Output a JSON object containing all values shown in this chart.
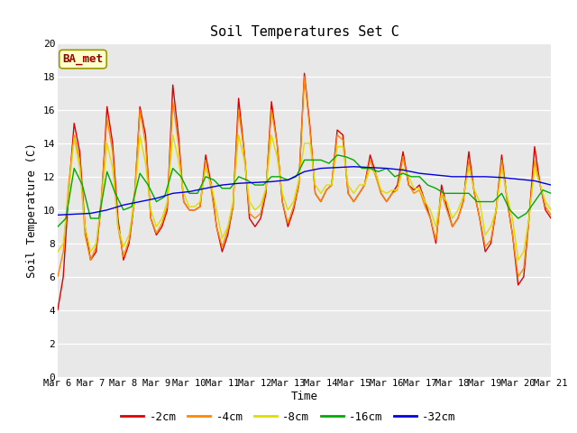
{
  "title": "Soil Temperatures Set C",
  "xlabel": "Time",
  "ylabel": "Soil Temperature (C)",
  "ylim": [
    0,
    20
  ],
  "yticks": [
    0,
    2,
    4,
    6,
    8,
    10,
    12,
    14,
    16,
    18,
    20
  ],
  "bg_color": "#e8e8e8",
  "fig_color": "#ffffff",
  "legend_label": "BA_met",
  "series": {
    "neg2cm": {
      "color": "#dd0000",
      "label": "-2cm",
      "x": [
        0.0,
        0.17,
        0.33,
        0.5,
        0.67,
        0.83,
        1.0,
        1.17,
        1.33,
        1.5,
        1.67,
        1.83,
        2.0,
        2.17,
        2.33,
        2.5,
        2.67,
        2.83,
        3.0,
        3.17,
        3.33,
        3.5,
        3.67,
        3.83,
        4.0,
        4.17,
        4.33,
        4.5,
        4.67,
        4.83,
        5.0,
        5.17,
        5.33,
        5.5,
        5.67,
        5.83,
        6.0,
        6.17,
        6.33,
        6.5,
        6.67,
        6.83,
        7.0,
        7.17,
        7.33,
        7.5,
        7.67,
        7.83,
        8.0,
        8.17,
        8.33,
        8.5,
        8.67,
        8.83,
        9.0,
        9.17,
        9.33,
        9.5,
        9.67,
        9.83,
        10.0,
        10.17,
        10.33,
        10.5,
        10.67,
        10.83,
        11.0,
        11.17,
        11.33,
        11.5,
        11.67,
        11.83,
        12.0,
        12.17,
        12.33,
        12.5,
        12.67,
        12.83,
        13.0,
        13.17,
        13.33,
        13.5,
        13.67,
        13.83,
        14.0,
        14.17,
        14.33,
        14.5,
        14.67,
        14.83,
        15.0
      ],
      "y": [
        4.0,
        6.0,
        11.0,
        15.2,
        13.5,
        9.0,
        7.0,
        7.5,
        10.5,
        16.2,
        14.0,
        9.5,
        7.0,
        8.0,
        10.5,
        16.2,
        14.5,
        9.5,
        8.5,
        9.0,
        10.0,
        17.5,
        14.5,
        10.5,
        10.0,
        10.0,
        10.2,
        13.3,
        11.5,
        9.0,
        7.5,
        8.5,
        10.2,
        16.7,
        13.5,
        9.5,
        9.0,
        9.5,
        11.0,
        16.5,
        14.0,
        10.5,
        9.0,
        10.0,
        11.5,
        18.2,
        15.0,
        11.0,
        10.5,
        11.2,
        11.5,
        14.8,
        14.5,
        11.0,
        10.5,
        11.0,
        11.5,
        13.3,
        12.2,
        11.0,
        10.5,
        11.0,
        11.5,
        13.5,
        11.5,
        11.2,
        11.5,
        10.5,
        9.5,
        8.0,
        11.5,
        10.2,
        9.0,
        9.5,
        10.5,
        13.5,
        11.0,
        9.5,
        7.5,
        8.0,
        10.0,
        13.3,
        10.5,
        8.5,
        5.5,
        6.0,
        9.5,
        13.8,
        11.5,
        10.0,
        9.5
      ]
    },
    "neg4cm": {
      "color": "#ff8800",
      "label": "-4cm",
      "x": [
        0.0,
        0.17,
        0.33,
        0.5,
        0.67,
        0.83,
        1.0,
        1.17,
        1.33,
        1.5,
        1.67,
        1.83,
        2.0,
        2.17,
        2.33,
        2.5,
        2.67,
        2.83,
        3.0,
        3.17,
        3.33,
        3.5,
        3.67,
        3.83,
        4.0,
        4.17,
        4.33,
        4.5,
        4.67,
        4.83,
        5.0,
        5.17,
        5.33,
        5.5,
        5.67,
        5.83,
        6.0,
        6.17,
        6.33,
        6.5,
        6.67,
        6.83,
        7.0,
        7.17,
        7.33,
        7.5,
        7.67,
        7.83,
        8.0,
        8.17,
        8.33,
        8.5,
        8.67,
        8.83,
        9.0,
        9.17,
        9.33,
        9.5,
        9.67,
        9.83,
        10.0,
        10.17,
        10.33,
        10.5,
        10.67,
        10.83,
        11.0,
        11.17,
        11.33,
        11.5,
        11.67,
        11.83,
        12.0,
        12.17,
        12.33,
        12.5,
        12.67,
        12.83,
        13.0,
        13.17,
        13.33,
        13.5,
        13.67,
        13.83,
        14.0,
        14.17,
        14.33,
        14.5,
        14.67,
        14.83,
        15.0
      ],
      "y": [
        6.0,
        7.5,
        11.5,
        14.5,
        13.0,
        8.5,
        7.0,
        7.8,
        10.8,
        15.5,
        13.5,
        9.0,
        7.2,
        8.2,
        10.8,
        16.0,
        14.0,
        9.5,
        8.6,
        9.2,
        10.2,
        16.5,
        14.0,
        10.5,
        10.0,
        10.0,
        10.2,
        13.0,
        11.2,
        9.0,
        7.8,
        8.8,
        10.2,
        16.0,
        13.5,
        9.8,
        9.5,
        9.8,
        11.2,
        16.0,
        14.0,
        10.5,
        9.2,
        10.2,
        11.5,
        18.0,
        14.8,
        11.0,
        10.5,
        11.2,
        11.5,
        14.5,
        14.2,
        11.0,
        10.5,
        11.0,
        11.5,
        13.0,
        12.0,
        11.0,
        10.5,
        11.0,
        11.2,
        13.2,
        11.5,
        11.0,
        11.2,
        10.2,
        9.5,
        8.2,
        11.0,
        10.0,
        9.0,
        9.5,
        10.5,
        13.0,
        11.0,
        9.5,
        7.8,
        8.2,
        10.0,
        13.0,
        10.5,
        8.5,
        6.0,
        6.5,
        9.5,
        13.0,
        11.5,
        10.2,
        9.7
      ]
    },
    "neg8cm": {
      "color": "#dddd00",
      "label": "-8cm",
      "x": [
        0.0,
        0.17,
        0.33,
        0.5,
        0.67,
        0.83,
        1.0,
        1.17,
        1.33,
        1.5,
        1.67,
        1.83,
        2.0,
        2.17,
        2.33,
        2.5,
        2.67,
        2.83,
        3.0,
        3.17,
        3.33,
        3.5,
        3.67,
        3.83,
        4.0,
        4.17,
        4.33,
        4.5,
        4.67,
        4.83,
        5.0,
        5.17,
        5.33,
        5.5,
        5.67,
        5.83,
        6.0,
        6.17,
        6.33,
        6.5,
        6.67,
        6.83,
        7.0,
        7.17,
        7.33,
        7.5,
        7.67,
        7.83,
        8.0,
        8.17,
        8.33,
        8.5,
        8.67,
        8.83,
        9.0,
        9.17,
        9.33,
        9.5,
        9.67,
        9.83,
        10.0,
        10.17,
        10.33,
        10.5,
        10.67,
        10.83,
        11.0,
        11.17,
        11.33,
        11.5,
        11.67,
        11.83,
        12.0,
        12.17,
        12.33,
        12.5,
        12.67,
        12.83,
        13.0,
        13.17,
        13.33,
        13.5,
        13.67,
        13.83,
        14.0,
        14.17,
        14.33,
        14.5,
        14.67,
        14.83,
        15.0
      ],
      "y": [
        7.5,
        8.0,
        11.0,
        14.3,
        12.5,
        9.0,
        7.5,
        8.0,
        10.5,
        14.0,
        12.5,
        9.0,
        7.8,
        8.5,
        10.5,
        14.5,
        12.8,
        10.0,
        9.0,
        9.5,
        10.5,
        14.5,
        13.0,
        11.0,
        10.2,
        10.2,
        10.5,
        12.5,
        11.5,
        10.0,
        8.3,
        9.0,
        10.5,
        14.5,
        13.0,
        10.5,
        10.0,
        10.3,
        11.3,
        14.5,
        13.2,
        11.0,
        10.0,
        10.5,
        11.8,
        14.0,
        14.0,
        11.5,
        11.0,
        11.5,
        11.5,
        13.8,
        13.8,
        11.5,
        11.0,
        11.5,
        11.5,
        12.5,
        12.2,
        11.2,
        11.0,
        11.2,
        11.2,
        12.5,
        12.0,
        11.3,
        11.3,
        10.5,
        10.0,
        9.0,
        11.0,
        10.5,
        9.5,
        10.0,
        10.8,
        12.5,
        11.2,
        10.5,
        8.5,
        9.0,
        10.0,
        12.5,
        10.8,
        9.5,
        7.0,
        7.5,
        9.5,
        12.5,
        11.5,
        10.5,
        10.0
      ]
    },
    "neg16cm": {
      "color": "#00aa00",
      "label": "-16cm",
      "x": [
        0.0,
        0.25,
        0.5,
        0.75,
        1.0,
        1.25,
        1.5,
        1.75,
        2.0,
        2.25,
        2.5,
        2.75,
        3.0,
        3.25,
        3.5,
        3.75,
        4.0,
        4.25,
        4.5,
        4.75,
        5.0,
        5.25,
        5.5,
        5.75,
        6.0,
        6.25,
        6.5,
        6.75,
        7.0,
        7.25,
        7.5,
        7.75,
        8.0,
        8.25,
        8.5,
        8.75,
        9.0,
        9.25,
        9.5,
        9.75,
        10.0,
        10.25,
        10.5,
        10.75,
        11.0,
        11.25,
        11.5,
        11.75,
        12.0,
        12.25,
        12.5,
        12.75,
        13.0,
        13.25,
        13.5,
        13.75,
        14.0,
        14.25,
        14.5,
        14.75,
        15.0
      ],
      "y": [
        9.0,
        9.5,
        12.5,
        11.5,
        9.5,
        9.5,
        12.3,
        11.0,
        10.0,
        10.2,
        12.2,
        11.5,
        10.5,
        10.8,
        12.5,
        12.0,
        11.0,
        11.0,
        12.0,
        11.8,
        11.3,
        11.3,
        12.0,
        11.8,
        11.5,
        11.5,
        12.0,
        12.0,
        11.8,
        12.0,
        13.0,
        13.0,
        13.0,
        12.8,
        13.3,
        13.2,
        13.0,
        12.5,
        12.5,
        12.3,
        12.5,
        12.0,
        12.2,
        12.0,
        12.0,
        11.5,
        11.3,
        11.0,
        11.0,
        11.0,
        11.0,
        10.5,
        10.5,
        10.5,
        11.0,
        10.0,
        9.5,
        9.8,
        10.5,
        11.2,
        11.0
      ]
    },
    "neg32cm": {
      "color": "#0000dd",
      "label": "-32cm",
      "x": [
        0.0,
        0.5,
        1.0,
        1.5,
        2.0,
        2.5,
        3.0,
        3.5,
        4.0,
        4.5,
        5.0,
        5.5,
        6.0,
        6.5,
        7.0,
        7.5,
        8.0,
        8.5,
        9.0,
        9.5,
        10.0,
        10.5,
        11.0,
        11.5,
        12.0,
        12.5,
        13.0,
        13.5,
        14.0,
        14.5,
        15.0
      ],
      "y": [
        9.7,
        9.75,
        9.8,
        10.0,
        10.3,
        10.5,
        10.7,
        11.0,
        11.1,
        11.3,
        11.5,
        11.6,
        11.65,
        11.7,
        11.8,
        12.3,
        12.5,
        12.55,
        12.6,
        12.55,
        12.5,
        12.4,
        12.2,
        12.1,
        12.0,
        12.0,
        12.0,
        11.95,
        11.85,
        11.75,
        11.5
      ]
    }
  },
  "xtick_positions": [
    0,
    1,
    2,
    3,
    4,
    5,
    6,
    7,
    8,
    9,
    10,
    11,
    12,
    13,
    14,
    15
  ],
  "xtick_labels": [
    "Mar 6",
    "Mar 7",
    "Mar 8",
    "Mar 9",
    "Mar 10",
    "Mar 11",
    "Mar 12",
    "Mar 13",
    "Mar 14",
    "Mar 15",
    "Mar 16",
    "Mar 17",
    "Mar 18",
    "Mar 19",
    "Mar 20",
    "Mar 21"
  ]
}
